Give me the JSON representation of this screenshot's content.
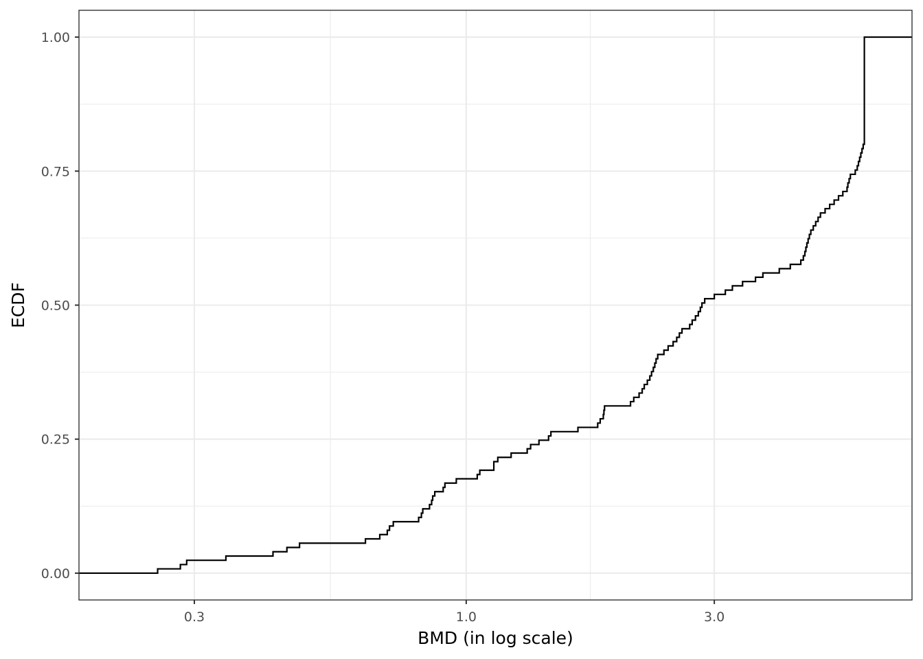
{
  "chart_data": {
    "type": "line",
    "subtype": "ecdf-step",
    "title": "",
    "xlabel": "BMD (in log scale)",
    "ylabel": "ECDF",
    "x_scale": "log10",
    "xlim": [
      0.18,
      7.2
    ],
    "ylim": [
      -0.05,
      1.05
    ],
    "x_ticks": [
      0.3,
      1.0,
      3.0
    ],
    "x_tick_labels": [
      "0.3",
      "1.0",
      "3.0"
    ],
    "x_minor_ticks": [
      0.548,
      1.732
    ],
    "y_ticks": [
      0,
      0.25,
      0.5,
      0.75,
      1.0
    ],
    "y_tick_labels": [
      "0.00",
      "0.25",
      "0.50",
      "0.75",
      "1.00"
    ],
    "y_minor_ticks": [
      0.125,
      0.375,
      0.625,
      0.875
    ],
    "grid": true,
    "legend": "none",
    "colors": {
      "line": "#000000",
      "grid": "#ebebeb",
      "panel_border": "#333333",
      "tick_text": "#4d4d4d"
    },
    "series": [
      {
        "x": [
          0.18,
          0.255,
          0.282,
          0.29,
          0.345,
          0.425,
          0.452,
          0.478,
          0.64,
          0.682,
          0.705,
          0.712,
          0.724,
          0.81,
          0.82,
          0.825,
          0.85,
          0.858,
          0.862,
          0.87,
          0.903,
          0.91,
          0.957,
          1.05,
          1.062,
          1.13,
          1.13,
          1.15,
          1.22,
          1.31,
          1.33,
          1.38,
          1.44,
          1.455,
          1.64,
          1.79,
          1.81,
          1.835,
          1.84,
          1.845,
          2.07,
          2.1,
          2.15,
          2.18,
          2.2,
          2.23,
          2.255,
          2.272,
          2.29,
          2.305,
          2.318,
          2.335,
          2.4,
          2.445,
          2.5,
          2.54,
          2.57,
          2.6,
          2.69,
          2.72,
          2.76,
          2.795,
          2.82,
          2.84,
          2.875,
          3.0,
          3.15,
          3.25,
          3.4,
          3.6,
          3.72,
          4.0,
          4.2,
          4.4,
          4.45,
          4.48,
          4.5,
          4.52,
          4.545,
          4.57,
          4.6,
          4.65,
          4.7,
          4.75,
          4.8,
          4.9,
          5.0,
          5.1,
          5.2,
          5.3,
          5.4,
          5.42,
          5.45,
          5.48,
          5.6,
          5.65,
          5.68,
          5.71,
          5.74,
          5.77,
          5.8,
          5.83,
          7.2
        ],
        "y": [
          0.0,
          0.008,
          0.016,
          0.024,
          0.032,
          0.04,
          0.048,
          0.056,
          0.064,
          0.072,
          0.08,
          0.088,
          0.096,
          0.104,
          0.112,
          0.12,
          0.128,
          0.136,
          0.144,
          0.152,
          0.16,
          0.168,
          0.176,
          0.184,
          0.192,
          0.2,
          0.208,
          0.216,
          0.224,
          0.232,
          0.24,
          0.248,
          0.256,
          0.264,
          0.272,
          0.28,
          0.288,
          0.296,
          0.304,
          0.312,
          0.32,
          0.328,
          0.336,
          0.344,
          0.352,
          0.36,
          0.368,
          0.376,
          0.384,
          0.392,
          0.4,
          0.408,
          0.416,
          0.424,
          0.432,
          0.44,
          0.448,
          0.456,
          0.464,
          0.472,
          0.48,
          0.488,
          0.496,
          0.504,
          0.512,
          0.52,
          0.528,
          0.536,
          0.544,
          0.552,
          0.56,
          0.568,
          0.576,
          0.584,
          0.592,
          0.6,
          0.608,
          0.616,
          0.624,
          0.632,
          0.64,
          0.648,
          0.656,
          0.664,
          0.672,
          0.68,
          0.688,
          0.696,
          0.704,
          0.712,
          0.72,
          0.728,
          0.736,
          0.744,
          0.752,
          0.76,
          0.768,
          0.776,
          0.784,
          0.792,
          0.8,
          1.0,
          1.0
        ]
      }
    ]
  }
}
